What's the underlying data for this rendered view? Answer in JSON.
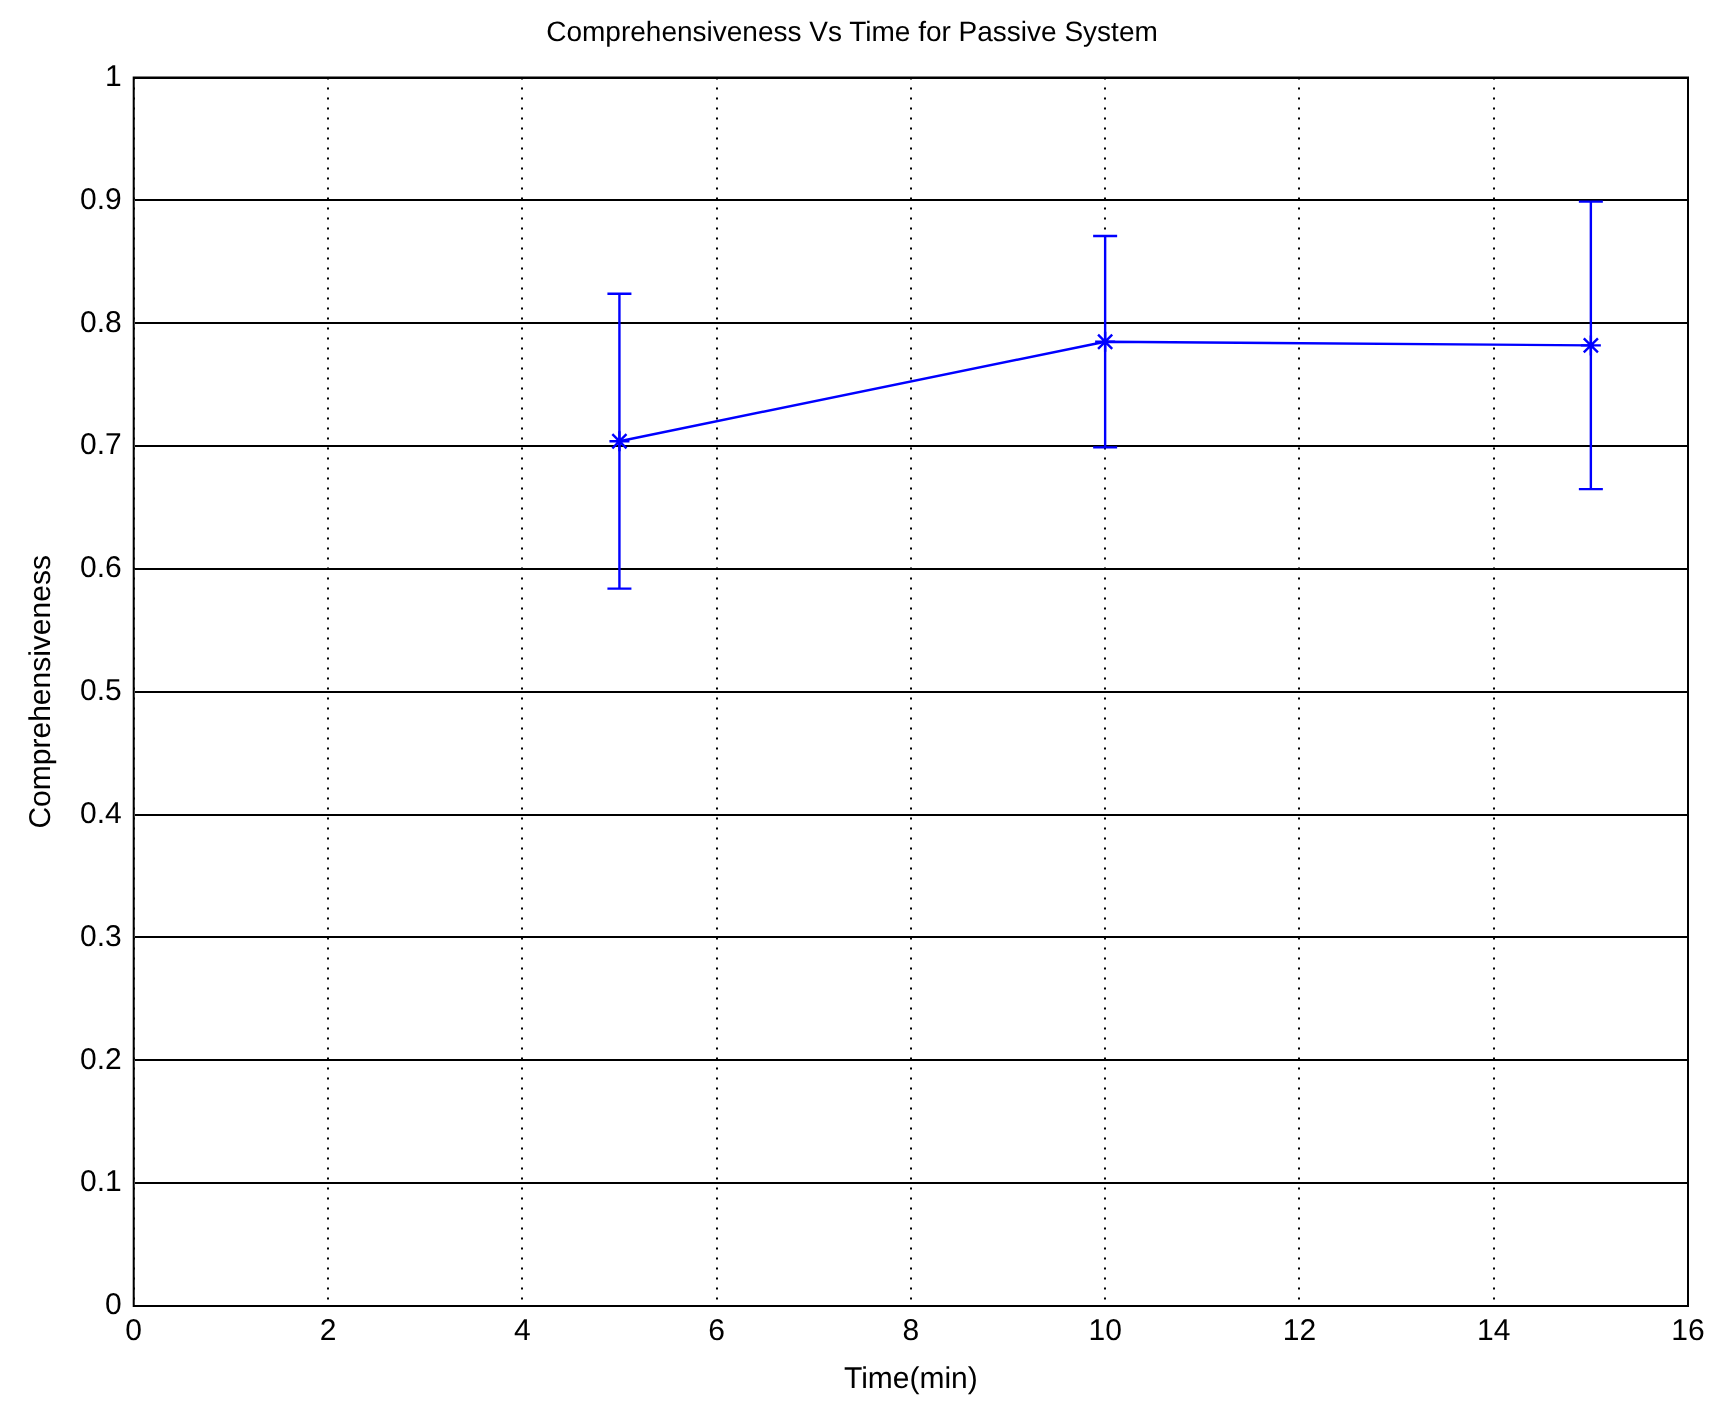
{
  "chart_data": {
    "type": "line",
    "title": "Comprehensiveness Vs Time for Passive System",
    "xlabel": "Time(min)",
    "ylabel": "Comprehensiveness",
    "x": [
      5,
      10,
      15
    ],
    "series": [
      {
        "color": "#0000ff",
        "values": [
          0.704,
          0.785,
          0.782
        ],
        "errors": [
          0.12,
          0.086,
          0.117
        ]
      }
    ],
    "xlim": [
      0,
      16
    ],
    "xticks": [
      0,
      2,
      4,
      6,
      8,
      10,
      12,
      14,
      16
    ],
    "ylim": [
      0,
      1
    ],
    "yticks": [
      0,
      0.1,
      0.2,
      0.3,
      0.4,
      0.5,
      0.6,
      0.7,
      0.8,
      0.9,
      1
    ],
    "grid": true,
    "legend": false,
    "marker": "cross",
    "line_style": "solid"
  }
}
